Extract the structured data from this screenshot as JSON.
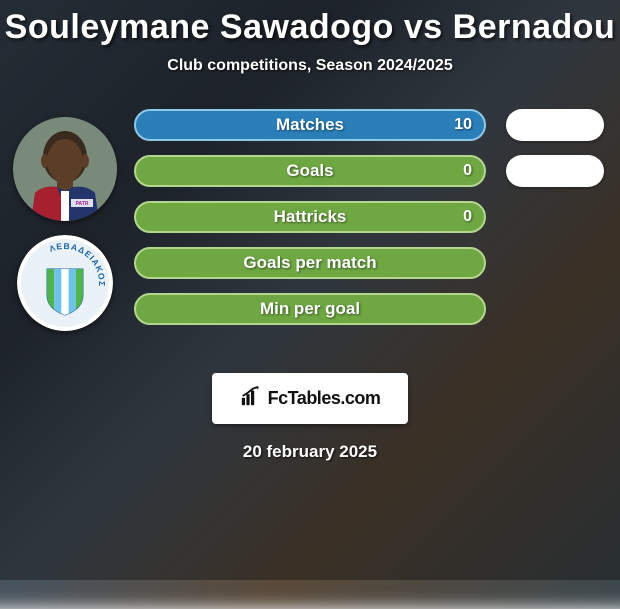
{
  "title": "Souleymane Sawadogo vs Bernadou",
  "subtitle": "Club competitions, Season 2024/2025",
  "date": "20 february 2025",
  "logo_text": "FcTables.com",
  "colors": {
    "bar_bg_green": "#6fa843",
    "bar_border_green": "#b3d68e",
    "bar_bg_blue": "#2a7fb8",
    "bar_border_blue": "#8fc7e8",
    "pill_bg": "#ffffff"
  },
  "stats": [
    {
      "label": "Matches",
      "left_value": "10",
      "right_pill": true,
      "fill": "blue"
    },
    {
      "label": "Goals",
      "left_value": "0",
      "right_pill": true,
      "fill": "green"
    },
    {
      "label": "Hattricks",
      "left_value": "0",
      "right_pill": false,
      "fill": "green"
    },
    {
      "label": "Goals per match",
      "left_value": "",
      "right_pill": false,
      "fill": "green"
    },
    {
      "label": "Min per goal",
      "left_value": "",
      "right_pill": false,
      "fill": "green"
    }
  ],
  "player": {
    "name": "Souleymane Sawadogo"
  },
  "club": {
    "name": "Levadiakos",
    "greek_label": "ΛΕΒΑΔΕΙΑΚΟΣ",
    "badge_colors": {
      "outer": "#ffffff",
      "ring": "#1a65a8",
      "stripe1": "#4fb34f",
      "stripe2": "#6ec4e8",
      "stripe3": "#ffffff"
    }
  }
}
